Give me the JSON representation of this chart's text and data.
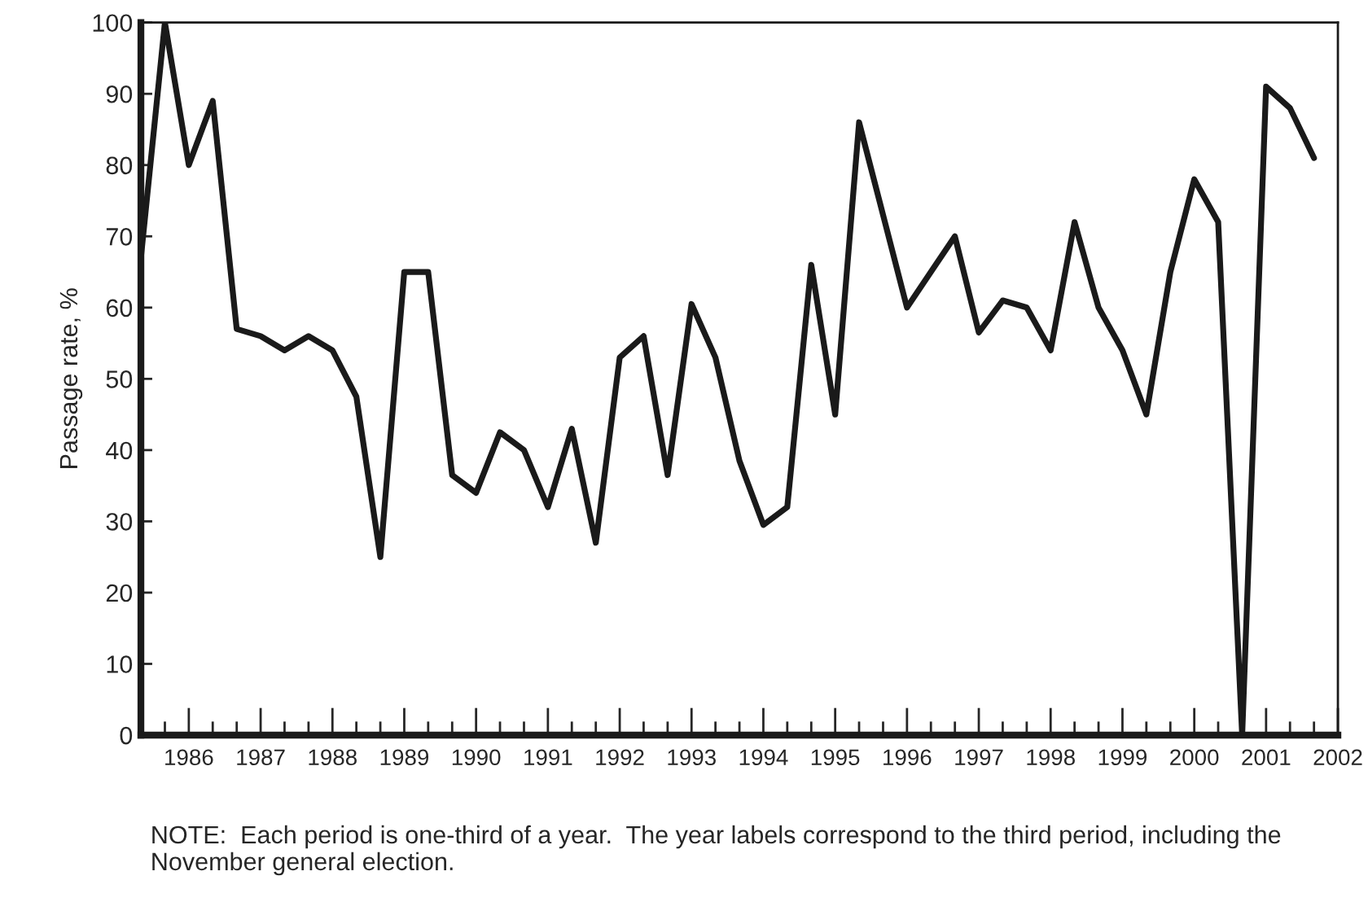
{
  "chart_data": {
    "type": "line",
    "ylabel": "Passage rate, %",
    "x": [
      1985.333,
      1985.667,
      1986,
      1986.333,
      1986.667,
      1987,
      1987.333,
      1987.667,
      1988,
      1988.333,
      1988.667,
      1989,
      1989.333,
      1989.667,
      1990,
      1990.333,
      1990.667,
      1991,
      1991.333,
      1991.667,
      1992,
      1992.333,
      1992.667,
      1993,
      1993.333,
      1993.667,
      1994,
      1994.333,
      1994.667,
      1995,
      1995.333,
      1995.667,
      1996,
      1996.333,
      1996.667,
      1997,
      1997.333,
      1997.667,
      1998,
      1998.333,
      1998.667,
      1999,
      1999.333,
      1999.667,
      2000,
      2000.333,
      2000.667,
      2001,
      2001.333,
      2001.667
    ],
    "series": [
      {
        "color": "#1a1a1a",
        "values": [
          67,
          100,
          80,
          89,
          57,
          56,
          54,
          56,
          54,
          47.5,
          25,
          65,
          65,
          36.5,
          34,
          42.5,
          40,
          32,
          43,
          27,
          53,
          56,
          36.5,
          60.5,
          53,
          38.5,
          29.5,
          32,
          66,
          45,
          86,
          73,
          60,
          65,
          70,
          56.5,
          61,
          60,
          54,
          72,
          60,
          54,
          45,
          65,
          78,
          72,
          0,
          91,
          88,
          81
        ]
      }
    ],
    "xlim": [
      1985.333,
      2002
    ],
    "xticks": [
      {
        "value": 1985.667,
        "label": null
      },
      {
        "value": 1986,
        "label": "1986"
      },
      {
        "value": 1986.333,
        "label": null
      },
      {
        "value": 1986.667,
        "label": null
      },
      {
        "value": 1987,
        "label": "1987"
      },
      {
        "value": 1987.333,
        "label": null
      },
      {
        "value": 1987.667,
        "label": null
      },
      {
        "value": 1988,
        "label": "1988"
      },
      {
        "value": 1988.333,
        "label": null
      },
      {
        "value": 1988.667,
        "label": null
      },
      {
        "value": 1989,
        "label": "1989"
      },
      {
        "value": 1989.333,
        "label": null
      },
      {
        "value": 1989.667,
        "label": null
      },
      {
        "value": 1990,
        "label": "1990"
      },
      {
        "value": 1990.333,
        "label": null
      },
      {
        "value": 1990.667,
        "label": null
      },
      {
        "value": 1991,
        "label": "1991"
      },
      {
        "value": 1991.333,
        "label": null
      },
      {
        "value": 1991.667,
        "label": null
      },
      {
        "value": 1992,
        "label": "1992"
      },
      {
        "value": 1992.333,
        "label": null
      },
      {
        "value": 1992.667,
        "label": null
      },
      {
        "value": 1993,
        "label": "1993"
      },
      {
        "value": 1993.333,
        "label": null
      },
      {
        "value": 1993.667,
        "label": null
      },
      {
        "value": 1994,
        "label": "1994"
      },
      {
        "value": 1994.333,
        "label": null
      },
      {
        "value": 1994.667,
        "label": null
      },
      {
        "value": 1995,
        "label": "1995"
      },
      {
        "value": 1995.333,
        "label": null
      },
      {
        "value": 1995.667,
        "label": null
      },
      {
        "value": 1996,
        "label": "1996"
      },
      {
        "value": 1996.333,
        "label": null
      },
      {
        "value": 1996.667,
        "label": null
      },
      {
        "value": 1997,
        "label": "1997"
      },
      {
        "value": 1997.333,
        "label": null
      },
      {
        "value": 1997.667,
        "label": null
      },
      {
        "value": 1998,
        "label": "1998"
      },
      {
        "value": 1998.333,
        "label": null
      },
      {
        "value": 1998.667,
        "label": null
      },
      {
        "value": 1999,
        "label": "1999"
      },
      {
        "value": 1999.333,
        "label": null
      },
      {
        "value": 1999.667,
        "label": null
      },
      {
        "value": 2000,
        "label": "2000"
      },
      {
        "value": 2000.333,
        "label": null
      },
      {
        "value": 2000.667,
        "label": null
      },
      {
        "value": 2001,
        "label": "2001"
      },
      {
        "value": 2001.333,
        "label": null
      },
      {
        "value": 2001.667,
        "label": null
      },
      {
        "value": 2002,
        "label": "2002"
      }
    ],
    "ylim": [
      0,
      100
    ],
    "yticks": [
      0,
      10,
      20,
      30,
      40,
      50,
      60,
      70,
      80,
      90,
      100
    ],
    "grid": false,
    "legend": false,
    "annotations": [
      "NOTE:  Each period is one-third of a year.  The year labels correspond to the third period, including the November general election."
    ]
  }
}
